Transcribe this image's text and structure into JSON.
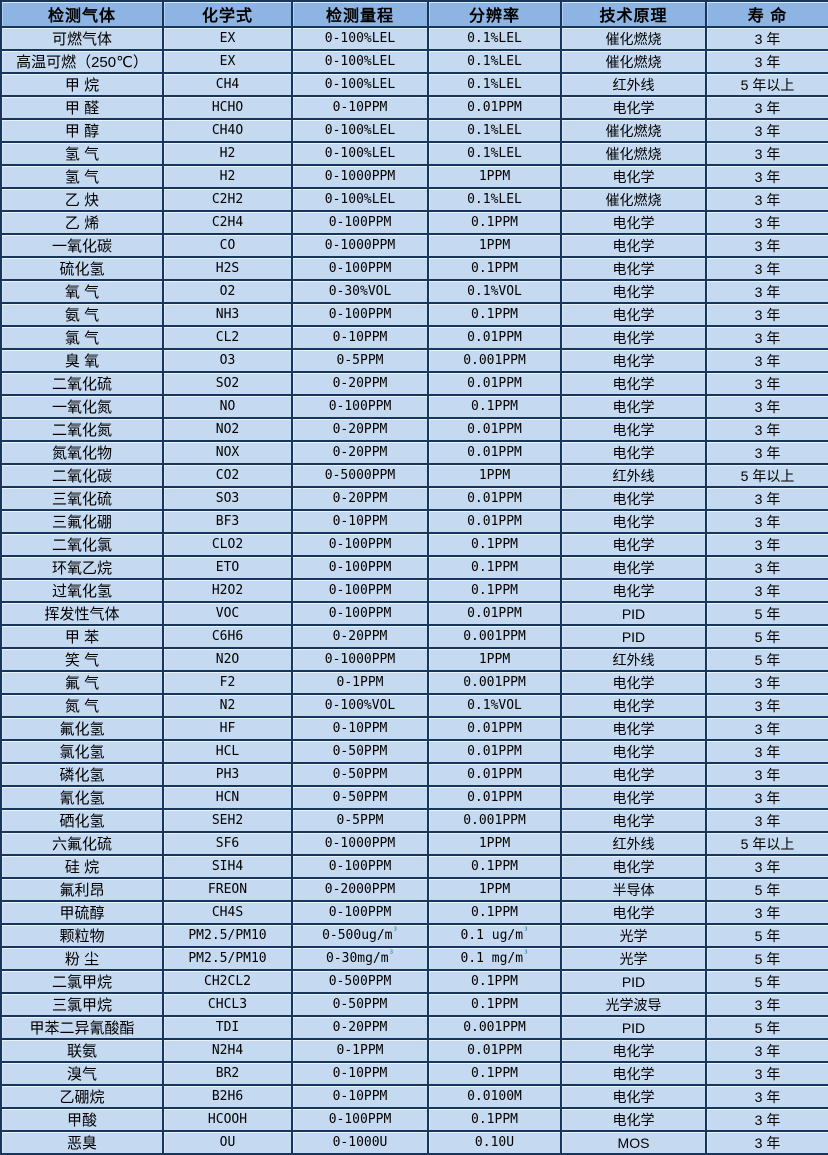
{
  "table": {
    "headers": [
      "检测气体",
      "化学式",
      "检测量程",
      "分辨率",
      "技术原理",
      "寿 命"
    ],
    "colors": {
      "header_bg": "#8DB4E2",
      "row_bg": "#C5D9F1",
      "border": "#16365C",
      "text": "#000000",
      "superscript_accent": "#31849B"
    },
    "rows": [
      {
        "gas": "可燃气体",
        "formula": "EX",
        "range": "0-100%LEL",
        "resolution": "0.1%LEL",
        "principle": "催化燃烧",
        "lifespan": "3 年"
      },
      {
        "gas": "高温可燃（250℃）",
        "formula": "EX",
        "range": "0-100%LEL",
        "resolution": "0.1%LEL",
        "principle": "催化燃烧",
        "lifespan": "3 年"
      },
      {
        "gas": "甲 烷",
        "formula": "CH4",
        "range": "0-100%LEL",
        "resolution": "0.1%LEL",
        "principle": "红外线",
        "lifespan": "5 年以上"
      },
      {
        "gas": "甲 醛",
        "formula": "HCHO",
        "range": "0-10PPM",
        "resolution": "0.01PPM",
        "principle": "电化学",
        "lifespan": "3 年"
      },
      {
        "gas": "甲 醇",
        "formula": "CH4O",
        "range": "0-100%LEL",
        "resolution": "0.1%LEL",
        "principle": "催化燃烧",
        "lifespan": "3 年"
      },
      {
        "gas": "氢 气",
        "formula": "H2",
        "range": "0-100%LEL",
        "resolution": "0.1%LEL",
        "principle": "催化燃烧",
        "lifespan": "3 年"
      },
      {
        "gas": "氢 气",
        "formula": "H2",
        "range": "0-1000PPM",
        "resolution": "1PPM",
        "principle": "电化学",
        "lifespan": "3 年"
      },
      {
        "gas": "乙 炔",
        "formula": "C2H2",
        "range": "0-100%LEL",
        "resolution": "0.1%LEL",
        "principle": "催化燃烧",
        "lifespan": "3 年"
      },
      {
        "gas": "乙 烯",
        "formula": "C2H4",
        "range": "0-100PPM",
        "resolution": "0.1PPM",
        "principle": "电化学",
        "lifespan": "3 年"
      },
      {
        "gas": "一氧化碳",
        "formula": "CO",
        "range": "0-1000PPM",
        "resolution": "1PPM",
        "principle": "电化学",
        "lifespan": "3 年"
      },
      {
        "gas": "硫化氢",
        "formula": "H2S",
        "range": "0-100PPM",
        "resolution": "0.1PPM",
        "principle": "电化学",
        "lifespan": "3 年"
      },
      {
        "gas": "氧 气",
        "formula": "O2",
        "range": "0-30%VOL",
        "resolution": "0.1%VOL",
        "principle": "电化学",
        "lifespan": "3 年"
      },
      {
        "gas": "氨 气",
        "formula": "NH3",
        "range": "0-100PPM",
        "resolution": "0.1PPM",
        "principle": "电化学",
        "lifespan": "3 年"
      },
      {
        "gas": "氯 气",
        "formula": "CL2",
        "range": "0-10PPM",
        "resolution": "0.01PPM",
        "principle": "电化学",
        "lifespan": "3 年"
      },
      {
        "gas": "臭 氧",
        "formula": "O3",
        "range": "0-5PPM",
        "resolution": "0.001PPM",
        "principle": "电化学",
        "lifespan": "3 年"
      },
      {
        "gas": "二氧化硫",
        "formula": "SO2",
        "range": "0-20PPM",
        "resolution": "0.01PPM",
        "principle": "电化学",
        "lifespan": "3 年"
      },
      {
        "gas": "一氧化氮",
        "formula": "NO",
        "range": "0-100PPM",
        "resolution": "0.1PPM",
        "principle": "电化学",
        "lifespan": "3 年"
      },
      {
        "gas": "二氧化氮",
        "formula": "NO2",
        "range": "0-20PPM",
        "resolution": "0.01PPM",
        "principle": "电化学",
        "lifespan": "3 年"
      },
      {
        "gas": "氮氧化物",
        "formula": "NOX",
        "range": "0-20PPM",
        "resolution": "0.01PPM",
        "principle": "电化学",
        "lifespan": "3 年"
      },
      {
        "gas": "二氧化碳",
        "formula": "CO2",
        "range": "0-5000PPM",
        "resolution": "1PPM",
        "principle": "红外线",
        "lifespan": "5 年以上"
      },
      {
        "gas": "三氧化硫",
        "formula": "SO3",
        "range": "0-20PPM",
        "resolution": "0.01PPM",
        "principle": "电化学",
        "lifespan": "3 年"
      },
      {
        "gas": "三氟化硼",
        "formula": "BF3",
        "range": "0-10PPM",
        "resolution": "0.01PPM",
        "principle": "电化学",
        "lifespan": "3 年"
      },
      {
        "gas": "二氧化氯",
        "formula": "CLO2",
        "range": "0-100PPM",
        "resolution": "0.1PPM",
        "principle": "电化学",
        "lifespan": "3 年"
      },
      {
        "gas": "环氧乙烷",
        "formula": "ETO",
        "range": "0-100PPM",
        "resolution": "0.1PPM",
        "principle": "电化学",
        "lifespan": "3 年"
      },
      {
        "gas": "过氧化氢",
        "formula": "H2O2",
        "range": "0-100PPM",
        "resolution": "0.1PPM",
        "principle": "电化学",
        "lifespan": "3 年"
      },
      {
        "gas": "挥发性气体",
        "formula": "VOC",
        "range": "0-100PPM",
        "resolution": "0.01PPM",
        "principle": "PID",
        "lifespan": "5 年"
      },
      {
        "gas": "甲 苯",
        "formula": "C6H6",
        "range": "0-20PPM",
        "resolution": "0.001PPM",
        "principle": "PID",
        "lifespan": "5 年"
      },
      {
        "gas": "笑 气",
        "formula": "N2O",
        "range": "0-1000PPM",
        "resolution": "1PPM",
        "principle": "红外线",
        "lifespan": "5 年"
      },
      {
        "gas": "氟 气",
        "formula": "F2",
        "range": "0-1PPM",
        "resolution": "0.001PPM",
        "principle": "电化学",
        "lifespan": "3 年"
      },
      {
        "gas": "氮 气",
        "formula": "N2",
        "range": "0-100%VOL",
        "resolution": "0.1%VOL",
        "principle": "电化学",
        "lifespan": "3 年"
      },
      {
        "gas": "氟化氢",
        "formula": "HF",
        "range": "0-10PPM",
        "resolution": "0.01PPM",
        "principle": "电化学",
        "lifespan": "3 年"
      },
      {
        "gas": "氯化氢",
        "formula": "HCL",
        "range": "0-50PPM",
        "resolution": "0.01PPM",
        "principle": "电化学",
        "lifespan": "3 年"
      },
      {
        "gas": "磷化氢",
        "formula": "PH3",
        "range": "0-50PPM",
        "resolution": "0.01PPM",
        "principle": "电化学",
        "lifespan": "3 年"
      },
      {
        "gas": "氰化氢",
        "formula": "HCN",
        "range": "0-50PPM",
        "resolution": "0.01PPM",
        "principle": "电化学",
        "lifespan": "3 年"
      },
      {
        "gas": "硒化氢",
        "formula": "SEH2",
        "range": "0-5PPM",
        "resolution": "0.001PPM",
        "principle": "电化学",
        "lifespan": "3 年"
      },
      {
        "gas": "六氟化硫",
        "formula": "SF6",
        "range": "0-1000PPM",
        "resolution": "1PPM",
        "principle": "红外线",
        "lifespan": "5 年以上"
      },
      {
        "gas": "硅 烷",
        "formula": "SIH4",
        "range": "0-100PPM",
        "resolution": "0.1PPM",
        "principle": "电化学",
        "lifespan": "3 年"
      },
      {
        "gas": "氟利昂",
        "formula": "FREON",
        "range": "0-2000PPM",
        "resolution": "1PPM",
        "principle": "半导体",
        "lifespan": "5 年"
      },
      {
        "gas": "甲硫醇",
        "formula": "CH4S",
        "range": "0-100PPM",
        "resolution": "0.1PPM",
        "principle": "电化学",
        "lifespan": "3 年"
      },
      {
        "gas": "颗粒物",
        "formula": "PM2.5/PM10",
        "range": "0-500ug/m³",
        "resolution": "0.1 ug/m³",
        "principle": "光学",
        "lifespan": "5 年"
      },
      {
        "gas": "粉 尘",
        "formula": "PM2.5/PM10",
        "range": "0-30mg/m³",
        "resolution": "0.1 mg/m³",
        "principle": "光学",
        "lifespan": "5 年"
      },
      {
        "gas": "二氯甲烷",
        "formula": "CH2CL2",
        "range": "0-500PPM",
        "resolution": "0.1PPM",
        "principle": "PID",
        "lifespan": "5 年"
      },
      {
        "gas": "三氯甲烷",
        "formula": "CHCL3",
        "range": "0-50PPM",
        "resolution": "0.1PPM",
        "principle": "光学波导",
        "lifespan": "3 年"
      },
      {
        "gas": "甲苯二异氰酸酯",
        "formula": "TDI",
        "range": "0-20PPM",
        "resolution": "0.001PPM",
        "principle": "PID",
        "lifespan": "5 年"
      },
      {
        "gas": "联氨",
        "formula": "N2H4",
        "range": "0-1PPM",
        "resolution": "0.01PPM",
        "principle": "电化学",
        "lifespan": "3 年"
      },
      {
        "gas": "溴气",
        "formula": "BR2",
        "range": "0-10PPM",
        "resolution": "0.1PPM",
        "principle": "电化学",
        "lifespan": "3 年"
      },
      {
        "gas": "乙硼烷",
        "formula": "B2H6",
        "range": "0-10PPM",
        "resolution": "0.0100M",
        "principle": "电化学",
        "lifespan": "3 年"
      },
      {
        "gas": "甲酸",
        "formula": "HCOOH",
        "range": "0-100PPM",
        "resolution": "0.1PPM",
        "principle": "电化学",
        "lifespan": "3 年"
      },
      {
        "gas": "恶臭",
        "formula": "OU",
        "range": "0-1000U",
        "resolution": "0.10U",
        "principle": "MOS",
        "lifespan": "3 年"
      }
    ]
  }
}
